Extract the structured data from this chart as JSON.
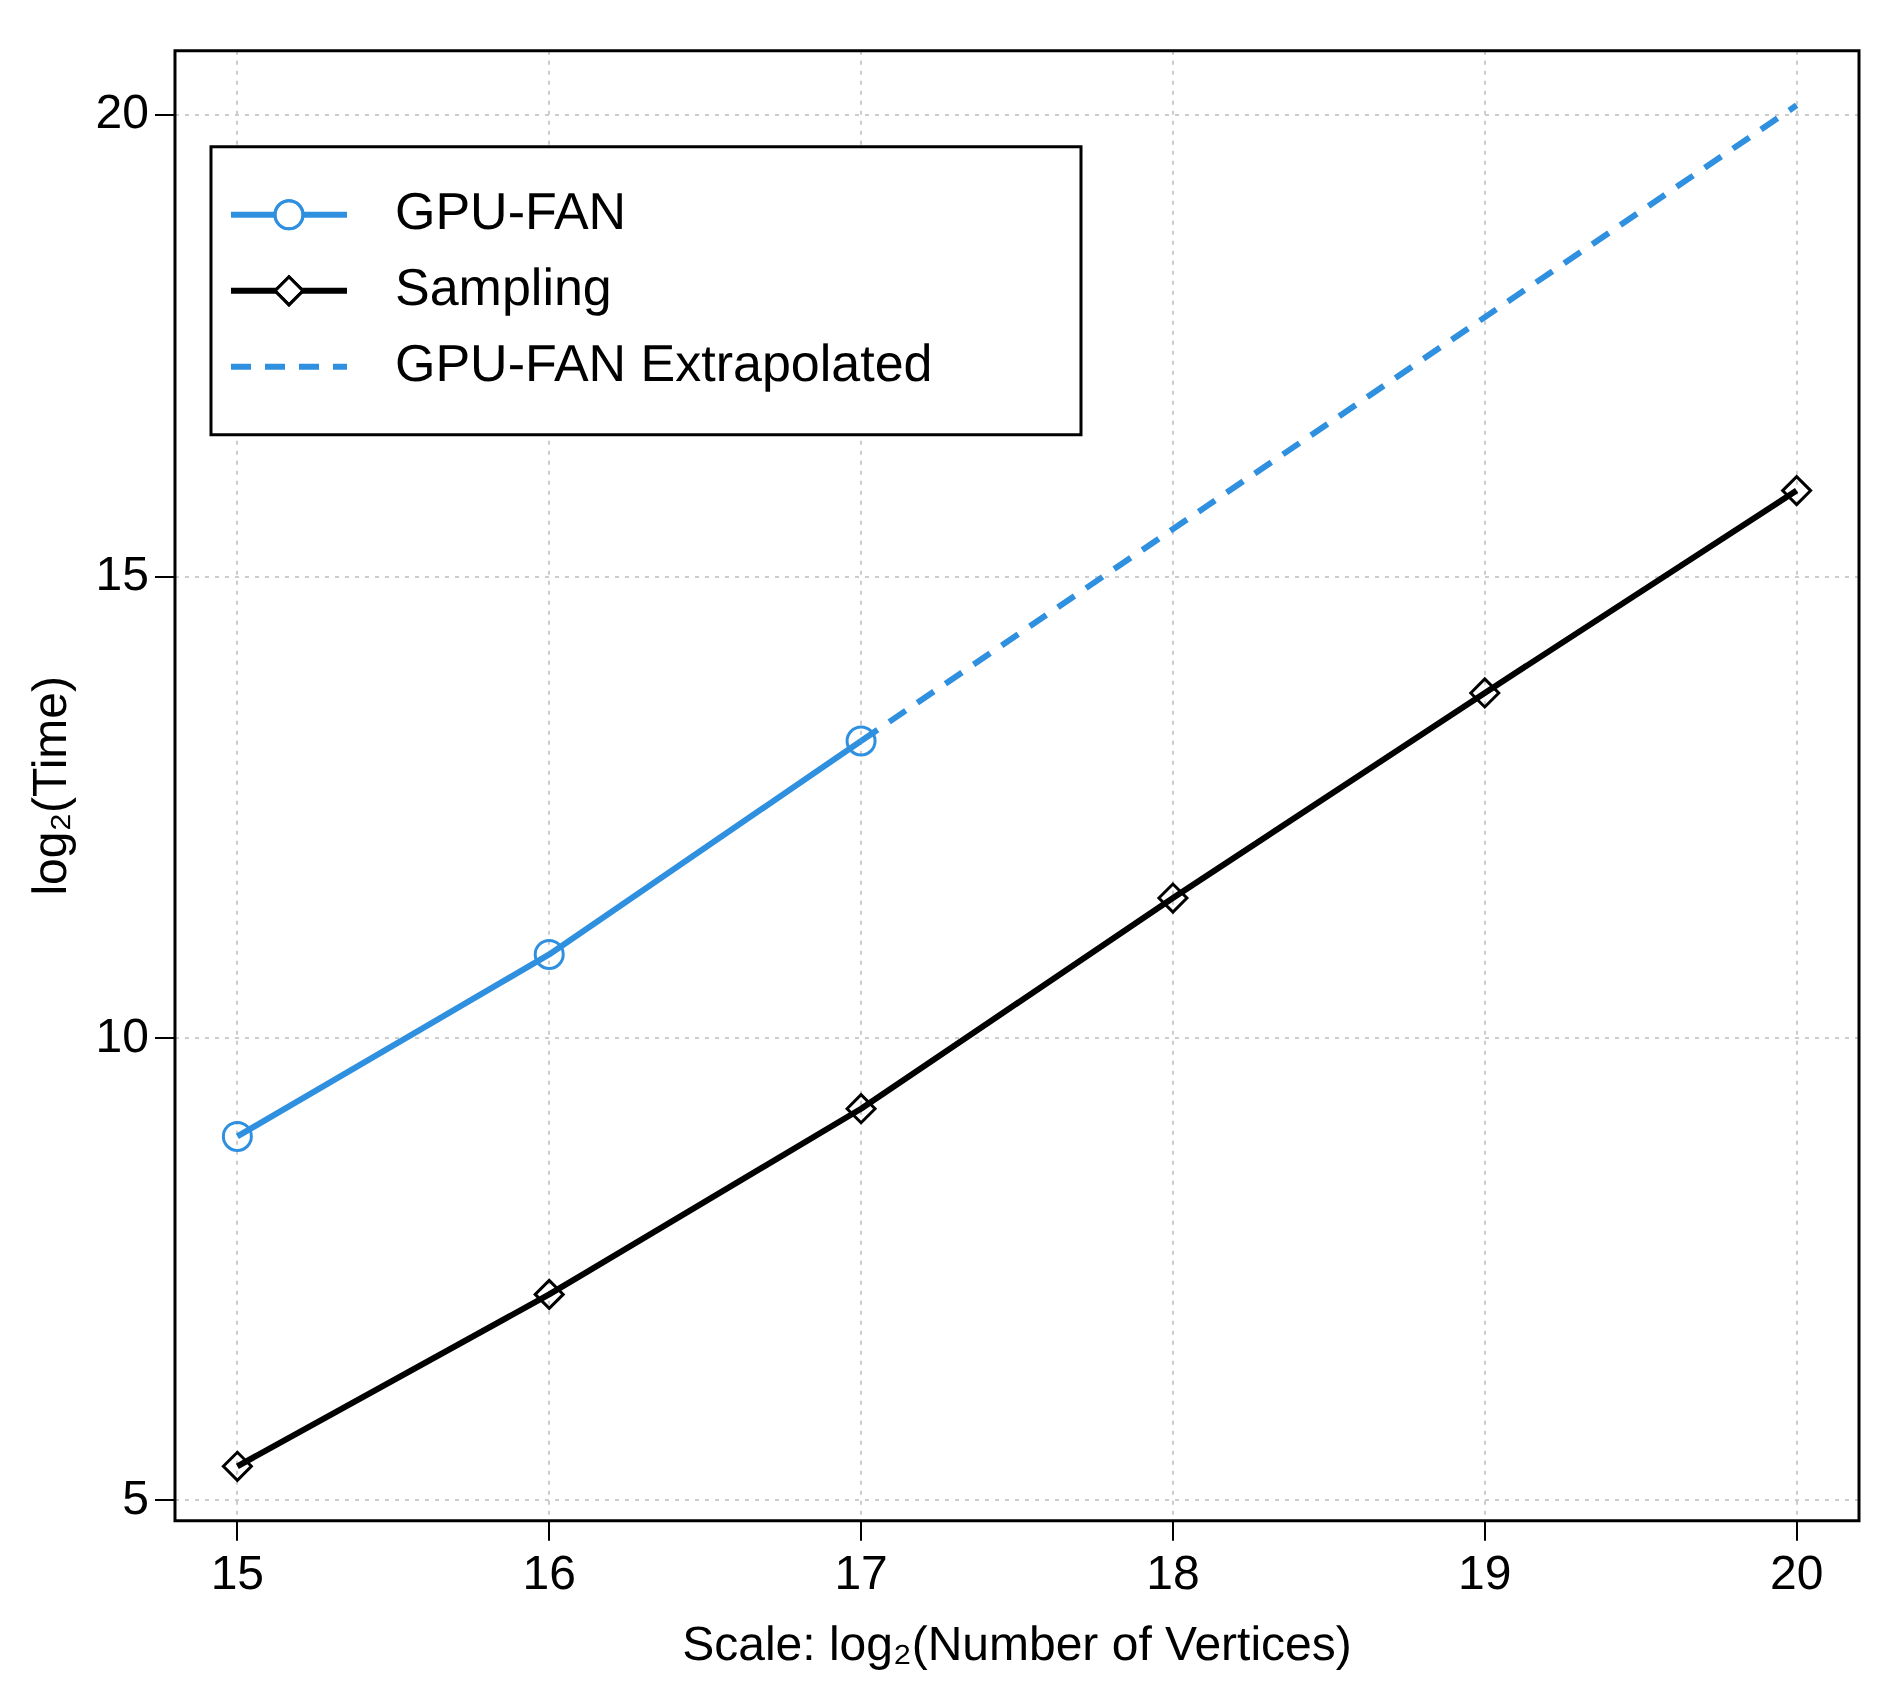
{
  "chart_data": {
    "type": "line",
    "xlabel": "Scale: log₂(Number of Vertices)",
    "ylabel": "log₂(Time)",
    "xlim": [
      14.8,
      20.2
    ],
    "xticks": [
      15,
      16,
      17,
      18,
      19,
      20
    ],
    "ylim": [
      4.78,
      20.69
    ],
    "yticks": [
      5,
      10,
      15,
      20
    ],
    "grid": true,
    "legend": "top left",
    "series": [
      {
        "name": "GPU-FAN",
        "color": "#3090e0",
        "x": [
          15,
          16,
          17
        ],
        "values": [
          8.94,
          10.91,
          13.22
        ],
        "marker": "circle",
        "line_style": "solid"
      },
      {
        "name": "Sampling",
        "color": "#000000",
        "x": [
          15,
          16,
          17,
          18,
          19,
          20
        ],
        "values": [
          5.37,
          7.23,
          9.24,
          11.52,
          13.74,
          15.93
        ],
        "marker": "diamond",
        "line_style": "solid"
      },
      {
        "name": "GPU-FAN Extrapolated",
        "color": "#3090e0",
        "x": [
          17,
          20
        ],
        "values": [
          13.22,
          20.1
        ],
        "marker": "none",
        "line_style": "dashed"
      }
    ]
  }
}
